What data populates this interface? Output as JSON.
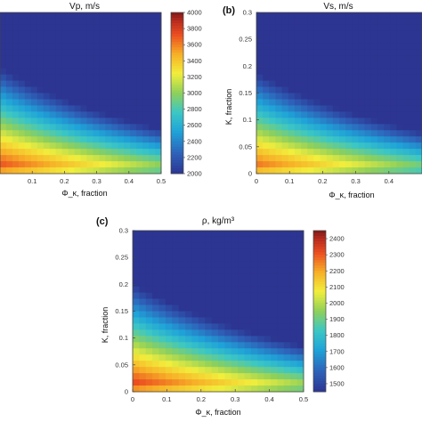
{
  "chart_data": [
    {
      "type": "heatmap",
      "panel_label": "",
      "title": "Vp, m/s",
      "xlabel": "Φ_κ, fraction",
      "ylabel": "",
      "xlim": [
        0,
        0.5
      ],
      "ylim": [
        0,
        0.3
      ],
      "xticks": [
        "0.1",
        "0.2",
        "0.3",
        "0.4",
        "0.5"
      ],
      "yticks": [],
      "colorbar": {
        "min": 2000,
        "max": 4000,
        "ticks": [
          "2000",
          "2200",
          "2400",
          "2600",
          "2800",
          "3000",
          "3200",
          "3400",
          "3600",
          "3800",
          "4000"
        ]
      },
      "value_model": {
        "low": 2000,
        "high": 4000,
        "trend": "highest at low K and low Φ, lowest at high K and high Φ"
      }
    },
    {
      "type": "heatmap",
      "panel_label": "(b)",
      "title": "Vs, m/s",
      "xlabel": "Φ_κ, fraction",
      "ylabel": "K, fraction",
      "xlim": [
        0,
        0.5
      ],
      "ylim": [
        0,
        0.3
      ],
      "xticks": [
        "0",
        "0.1",
        "0.2",
        "0.3",
        "0.4"
      ],
      "yticks": [
        "0",
        "0.05",
        "0.1",
        "0.15",
        "0.2",
        "0.25",
        "0.3"
      ],
      "colorbar": null,
      "value_model": {
        "trend": "highest at low K and low Φ, lowest at high K and high Φ"
      }
    },
    {
      "type": "heatmap",
      "panel_label": "(c)",
      "title": "ρ, kg/m³",
      "xlabel": "Φ_κ, fraction",
      "ylabel": "K, fraction",
      "xlim": [
        0,
        0.5
      ],
      "ylim": [
        0,
        0.3
      ],
      "xticks": [
        "0",
        "0.1",
        "0.2",
        "0.3",
        "0.4",
        "0.5"
      ],
      "yticks": [
        "0",
        "0.05",
        "0.1",
        "0.15",
        "0.2",
        "0.25",
        "0.3"
      ],
      "colorbar": {
        "min": 1450,
        "max": 2450,
        "ticks": [
          "1500",
          "1600",
          "1700",
          "1800",
          "1900",
          "2000",
          "2100",
          "2200",
          "2300",
          "2400"
        ]
      },
      "value_model": {
        "low": 1450,
        "high": 2450,
        "trend": "highest at low K and low Φ, lowest at high K and high Φ"
      }
    }
  ]
}
